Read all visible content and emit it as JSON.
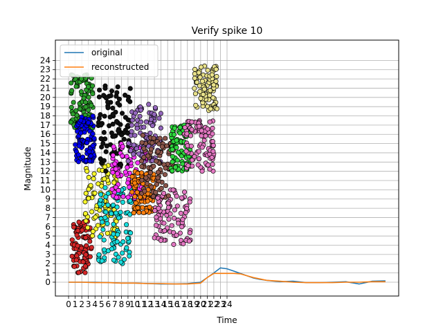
{
  "chart_data": {
    "type": "line",
    "title": "Verify spike 10",
    "xlabel": "Time",
    "ylabel": "Magnitude",
    "x_ticks": [
      "0",
      "1",
      "2",
      "3",
      "4",
      "5",
      "6",
      "7",
      "8",
      "9",
      "10",
      "11",
      "12",
      "13",
      "14",
      "15",
      "16",
      "17",
      "18",
      "19",
      "20",
      "21",
      "22",
      "23",
      "24"
    ],
    "y_ticks": [
      0,
      1,
      2,
      3,
      4,
      5,
      6,
      7,
      8,
      9,
      10,
      11,
      12,
      13,
      14,
      15,
      16,
      17,
      18,
      19,
      20,
      21,
      22,
      23,
      24
    ],
    "xlim": [
      -2.0,
      50.0
    ],
    "ylim": [
      -1.5,
      26.2
    ],
    "grid": true,
    "legend_position": "upper-left",
    "series": [
      {
        "name": "original",
        "color": "#1f77b4",
        "x": [
          0,
          2,
          4,
          6,
          8,
          10,
          12,
          14,
          16,
          18,
          20,
          22,
          23,
          24,
          25,
          26,
          27,
          28,
          29,
          30,
          32,
          34,
          36,
          38,
          40,
          42,
          44,
          46,
          48
        ],
        "y": [
          0,
          0,
          0,
          -0.05,
          -0.1,
          -0.1,
          -0.15,
          -0.2,
          -0.2,
          -0.15,
          0.0,
          1.0,
          1.55,
          1.45,
          1.2,
          0.95,
          0.7,
          0.45,
          0.3,
          0.2,
          0.05,
          0.1,
          -0.05,
          -0.05,
          0.0,
          0.05,
          -0.2,
          0.1,
          0.15
        ]
      },
      {
        "name": "reconstructed",
        "color": "#ff7f0e",
        "x": [
          0,
          2,
          4,
          6,
          8,
          10,
          12,
          14,
          16,
          18,
          20,
          21,
          22,
          23,
          24,
          25,
          26,
          27,
          28,
          29,
          30,
          32,
          34,
          36,
          38,
          40,
          42,
          44,
          46,
          48
        ],
        "y": [
          0,
          0,
          -0.05,
          -0.05,
          -0.1,
          -0.1,
          -0.15,
          -0.15,
          -0.2,
          -0.2,
          -0.1,
          0.5,
          0.95,
          0.95,
          0.95,
          0.95,
          0.9,
          0.7,
          0.5,
          0.35,
          0.2,
          0.1,
          0.0,
          -0.05,
          -0.05,
          -0.05,
          0.0,
          0.0,
          0.05,
          0.05
        ]
      }
    ],
    "scatter_clusters": [
      {
        "color": "#d62728",
        "x": [
          0.5,
          3.5
        ],
        "y": [
          1,
          6.6
        ]
      },
      {
        "color": "#2ca02c",
        "x": [
          0.3,
          3.7
        ],
        "y": [
          16.5,
          22.5
        ]
      },
      {
        "color": "#0000ee",
        "x": [
          1.0,
          4.0
        ],
        "y": [
          13,
          18
        ]
      },
      {
        "color": "#f5f52b",
        "x": [
          2.5,
          7.5
        ],
        "y": [
          4.8,
          13
        ]
      },
      {
        "color": "#17dede",
        "x": [
          4.5,
          9.5
        ],
        "y": [
          2,
          10.5
        ]
      },
      {
        "color": "#111111",
        "x": [
          4.5,
          9.5
        ],
        "y": [
          12,
          21.5
        ]
      },
      {
        "color": "#ff33ff",
        "x": [
          6.5,
          12.0
        ],
        "y": [
          9,
          15
        ]
      },
      {
        "color": "#9467bd",
        "x": [
          9.0,
          14.0
        ],
        "y": [
          13,
          19.5
        ]
      },
      {
        "color": "#ff7f0e",
        "x": [
          9.5,
          13.0
        ],
        "y": [
          7.5,
          12
        ]
      },
      {
        "color": "#8c564b",
        "x": [
          11.0,
          16.0
        ],
        "y": [
          9,
          16
        ]
      },
      {
        "color": "#e377c2",
        "x": [
          13.0,
          18.5
        ],
        "y": [
          4,
          10
        ]
      },
      {
        "color": "#2dd83d",
        "x": [
          15.5,
          18.5
        ],
        "y": [
          12,
          17
        ]
      },
      {
        "color": "#e377c2",
        "x": [
          17.5,
          22.0
        ],
        "y": [
          12,
          17.5
        ]
      },
      {
        "color": "#e8e18a",
        "x": [
          19.0,
          22.5
        ],
        "y": [
          18.5,
          23.5
        ]
      }
    ]
  }
}
